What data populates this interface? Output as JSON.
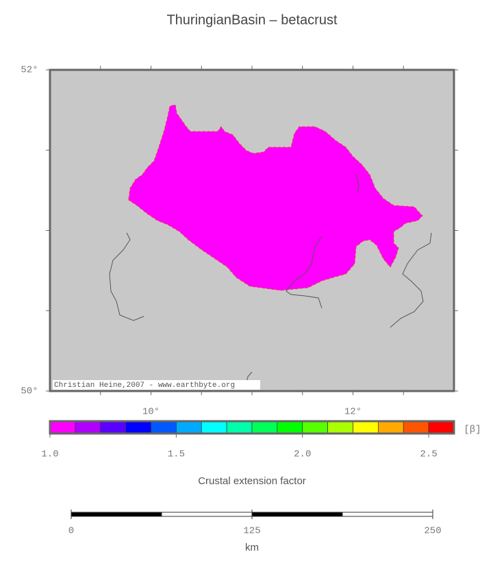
{
  "title": "ThuringianBasin – betacrust",
  "map": {
    "xlim": [
      9,
      13
    ],
    "ylim": [
      50,
      52
    ],
    "xticks": [
      {
        "value": 9.5,
        "label": null
      },
      {
        "value": 10,
        "label": "10°"
      },
      {
        "value": 10.5,
        "label": null
      },
      {
        "value": 11,
        "label": null
      },
      {
        "value": 11.5,
        "label": null
      },
      {
        "value": 12,
        "label": "12°"
      },
      {
        "value": 12.5,
        "label": null
      }
    ],
    "yticks": [
      {
        "value": 50,
        "label": "50°"
      },
      {
        "value": 50.5,
        "label": null
      },
      {
        "value": 51,
        "label": null
      },
      {
        "value": 51.5,
        "label": null
      },
      {
        "value": 52,
        "label": "52°"
      }
    ],
    "background": "#c8c8c8",
    "region_color": "#ff00ff",
    "credit": "Christian Heine,2007 - www.earthbyte.org"
  },
  "colorbar": {
    "lim": [
      1.0,
      2.6
    ],
    "colors": [
      "#ff00ff",
      "#b000ff",
      "#5a00ff",
      "#0000ff",
      "#0058ff",
      "#00aaff",
      "#00ffff",
      "#00ffaa",
      "#00ff58",
      "#00ff00",
      "#58ff00",
      "#aaff00",
      "#ffff00",
      "#ffaa00",
      "#ff5500",
      "#ff0000"
    ],
    "ticks": [
      {
        "value": 1.0,
        "label": "1.0"
      },
      {
        "value": 1.5,
        "label": "1.5"
      },
      {
        "value": 2.0,
        "label": "2.0"
      },
      {
        "value": 2.5,
        "label": "2.5"
      }
    ],
    "unit": "[β]",
    "label": "Crustal extension factor"
  },
  "scalebar": {
    "lim": [
      0,
      250
    ],
    "ticks": [
      0,
      125,
      250
    ],
    "unit": "km"
  }
}
